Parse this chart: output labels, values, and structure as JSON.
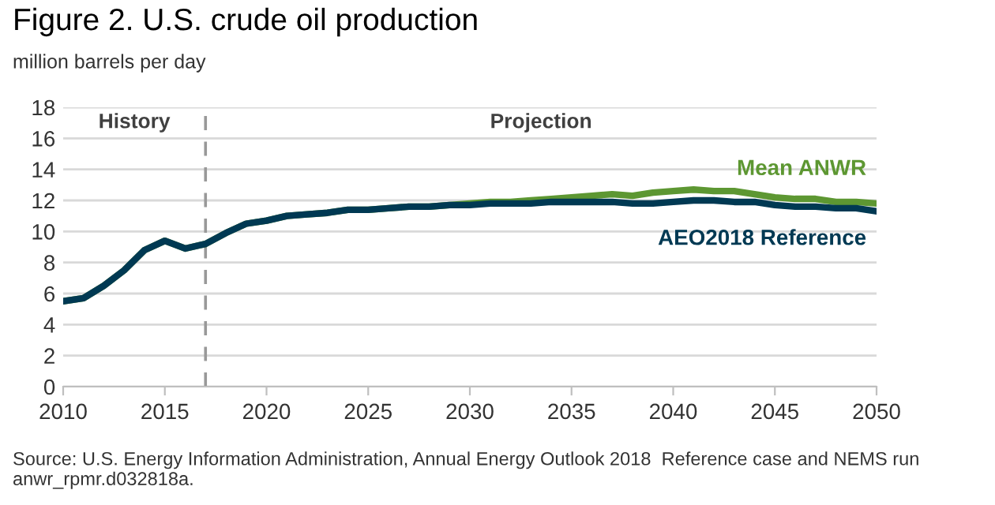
{
  "chart_data": {
    "type": "line",
    "title": "Figure 2. U.S. crude oil production",
    "subtitle": "million barrels per day",
    "x": [
      2010,
      2011,
      2012,
      2013,
      2014,
      2015,
      2016,
      2017,
      2018,
      2019,
      2020,
      2021,
      2022,
      2023,
      2024,
      2025,
      2026,
      2027,
      2028,
      2029,
      2030,
      2031,
      2032,
      2033,
      2034,
      2035,
      2036,
      2037,
      2038,
      2039,
      2040,
      2041,
      2042,
      2043,
      2044,
      2045,
      2046,
      2047,
      2048,
      2049,
      2050
    ],
    "series": [
      {
        "name": "Mean ANWR",
        "color": "#5d9732",
        "values": [
          5.5,
          5.7,
          6.5,
          7.5,
          8.8,
          9.4,
          8.9,
          9.2,
          9.9,
          10.5,
          10.7,
          11.0,
          11.1,
          11.2,
          11.4,
          11.4,
          11.5,
          11.6,
          11.6,
          11.7,
          11.8,
          11.9,
          11.9,
          12.0,
          12.1,
          12.2,
          12.3,
          12.4,
          12.3,
          12.5,
          12.6,
          12.7,
          12.6,
          12.6,
          12.4,
          12.2,
          12.1,
          12.1,
          11.9,
          11.9,
          11.8
        ]
      },
      {
        "name": "AEO2018 Reference",
        "color": "#003953",
        "values": [
          5.5,
          5.7,
          6.5,
          7.5,
          8.8,
          9.4,
          8.9,
          9.2,
          9.9,
          10.5,
          10.7,
          11.0,
          11.1,
          11.2,
          11.4,
          11.4,
          11.5,
          11.6,
          11.6,
          11.7,
          11.7,
          11.8,
          11.8,
          11.8,
          11.9,
          11.9,
          11.9,
          11.9,
          11.8,
          11.8,
          11.9,
          12.0,
          12.0,
          11.9,
          11.9,
          11.7,
          11.6,
          11.6,
          11.5,
          11.5,
          11.3
        ]
      }
    ],
    "xlim": [
      2010,
      2050
    ],
    "xticks": [
      2010,
      2015,
      2020,
      2025,
      2030,
      2035,
      2040,
      2045,
      2050
    ],
    "ylim": [
      0,
      18
    ],
    "yticks": [
      0,
      2,
      4,
      6,
      8,
      10,
      12,
      14,
      16,
      18
    ],
    "grid": "y",
    "legend": false,
    "ref_lines": [
      {
        "axis": "x",
        "value": 2017,
        "color": "#999999",
        "line_style": "dashed"
      }
    ],
    "annotations": [
      "History",
      "Projection",
      "Source: U.S. Energy Information Administration, Annual Energy Outlook 2018  Reference case and NEMS run anwr_rpmr.d032818a."
    ]
  }
}
